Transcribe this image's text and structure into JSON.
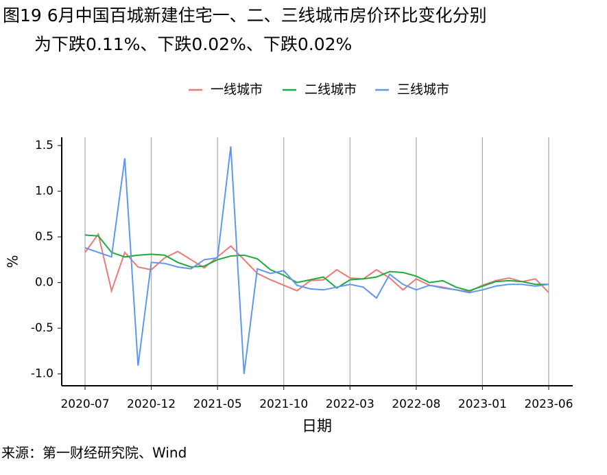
{
  "chart_data": {
    "type": "line",
    "title": [
      "图19 6月中国百城新建住宅一、二、三线城市房价环比变化分别",
      "为下跌0.11%、下跌0.02%、下跌0.02%"
    ],
    "xlabel": "日期",
    "ylabel": "%",
    "source": "来源：第一财经研究院、Wind",
    "categories": [
      "2020-07",
      null,
      null,
      null,
      null,
      "2020-12",
      null,
      null,
      null,
      null,
      "2021-05",
      null,
      null,
      null,
      null,
      "2021-10",
      null,
      null,
      null,
      null,
      "2022-03",
      null,
      null,
      null,
      null,
      "2022-08",
      null,
      null,
      null,
      null,
      "2023-01",
      null,
      null,
      null,
      null,
      "2023-06"
    ],
    "series": [
      {
        "name": "一线城市",
        "color": "#f07874",
        "values": [
          0.33,
          0.53,
          -0.09,
          0.33,
          0.17,
          0.14,
          0.27,
          0.34,
          0.25,
          0.16,
          0.28,
          0.4,
          0.25,
          0.1,
          0.03,
          -0.03,
          -0.09,
          0.02,
          0.03,
          0.14,
          0.05,
          0.04,
          0.14,
          0.05,
          -0.08,
          0.04,
          -0.03,
          -0.05,
          -0.08,
          -0.1,
          -0.03,
          0.02,
          0.05,
          0.01,
          0.04,
          -0.11
        ]
      },
      {
        "name": "二线城市",
        "color": "#1aac3a",
        "values": [
          0.52,
          0.51,
          0.33,
          0.28,
          0.3,
          0.31,
          0.3,
          0.22,
          0.17,
          0.18,
          0.25,
          0.29,
          0.3,
          0.26,
          0.14,
          0.08,
          0.0,
          0.03,
          0.06,
          -0.06,
          0.03,
          0.04,
          0.06,
          0.12,
          0.11,
          0.07,
          0.0,
          0.02,
          -0.05,
          -0.09,
          -0.04,
          0.01,
          0.02,
          0.01,
          -0.02,
          -0.02
        ]
      },
      {
        "name": "三线城市",
        "color": "#5f97f0",
        "values": [
          0.38,
          0.33,
          0.28,
          1.36,
          -0.91,
          0.22,
          0.21,
          0.17,
          0.15,
          0.25,
          0.27,
          1.49,
          -1.0,
          0.15,
          0.1,
          0.13,
          -0.03,
          -0.07,
          -0.08,
          -0.05,
          -0.02,
          -0.05,
          -0.17,
          0.09,
          -0.02,
          -0.08,
          -0.03,
          -0.06,
          -0.08,
          -0.11,
          -0.08,
          -0.04,
          -0.02,
          -0.02,
          -0.04,
          -0.02
        ]
      }
    ],
    "ylim": [
      -1.13,
      1.59
    ],
    "yticks": [
      {
        "value": -1,
        "label": "-1.0"
      },
      {
        "value": -0.5,
        "label": "-0.5"
      },
      {
        "value": 0,
        "label": "0.0"
      },
      0.5,
      {
        "value": 1,
        "label": "1.0"
      },
      1.5
    ],
    "grid": "x",
    "legend": "top"
  }
}
